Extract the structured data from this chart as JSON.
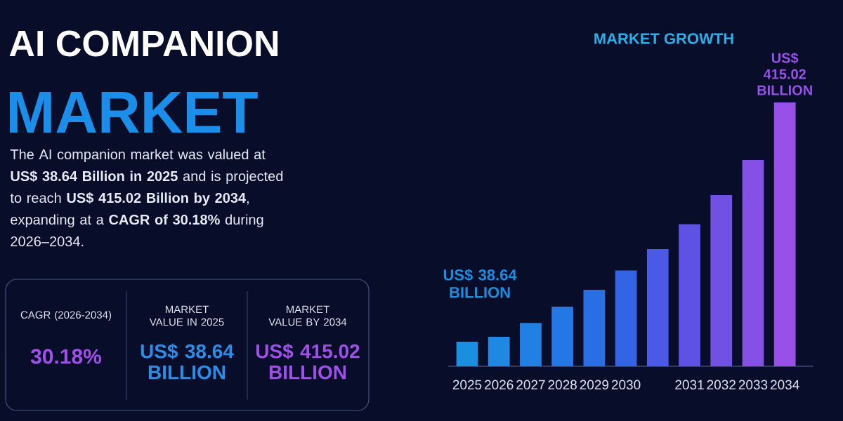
{
  "chart_data": {
    "type": "bar",
    "title": "MARKET GROWTH",
    "categories": [
      "2025",
      "2026",
      "2027",
      "2028",
      "2029",
      "2030",
      null,
      "2031",
      "2032",
      "2033",
      "2034"
    ],
    "values": [
      38.64,
      46.5,
      68.1,
      93.8,
      120.4,
      150.7,
      184.3,
      223.7,
      269.3,
      324.5,
      415.02
    ],
    "colors": [
      "#1a8fe0",
      "#1e88e2",
      "#2080e4",
      "#2478e6",
      "#2a6ee6",
      "#3464e6",
      "#4a5ae6",
      "#5e52e4",
      "#7150e4",
      "#8450e6",
      "#9850e8"
    ],
    "value_labels": [
      "US$ 38.64 BILLION",
      null,
      null,
      null,
      null,
      null,
      null,
      null,
      null,
      null,
      "US$ 415.02 BILLION"
    ],
    "annotations": [
      "AI COMPANION",
      "MARKET",
      "The AI companion market was valued at **US$ 38.64 Billion in 2025** and is projected to reach **US$ 415.02 Billion by 2034**, expanding at a **CAGR of 30.18%** during 2026–2034.",
      "CAGR (2026-2034)",
      "30.18%",
      "MARKET VALUE IN 2025",
      "US$ 38.64 BILLION",
      "MARKET VALUE BY 2034",
      "US$ 415.02 BILLION"
    ]
  }
}
